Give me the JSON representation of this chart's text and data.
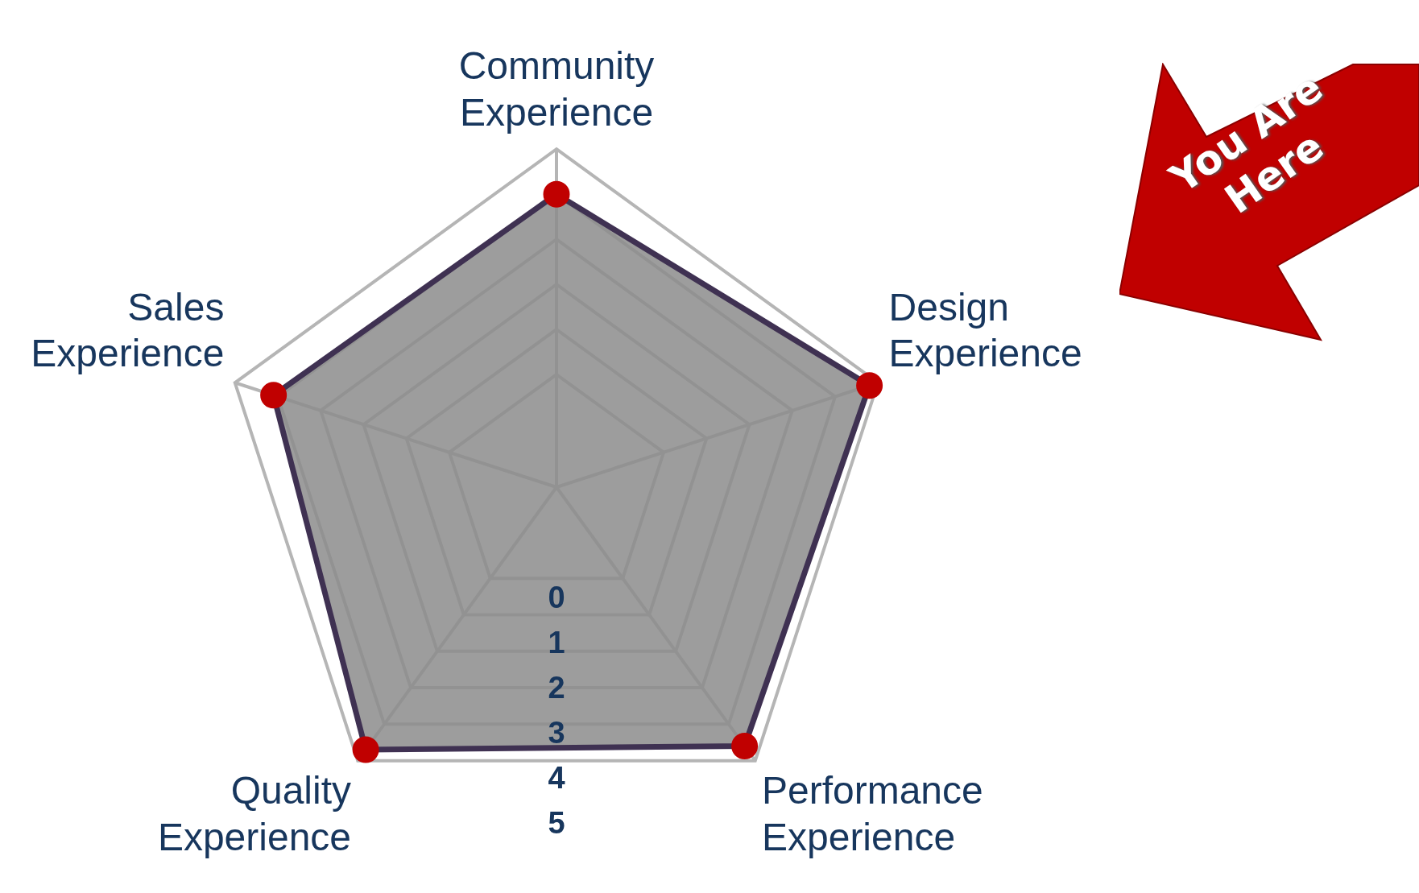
{
  "chart_data": {
    "type": "radar",
    "categories": [
      "Community Experience",
      "Design Experience",
      "Performance Experience",
      "Quality Experience",
      "Sales Experience"
    ],
    "series": [
      {
        "color": "#3f3152",
        "values": [
          4,
          4.8,
          4.6,
          4.7,
          4.1
        ]
      }
    ],
    "ylim": [
      -2.5,
      5
    ],
    "yticks": [
      0,
      1,
      2,
      3,
      4,
      5
    ],
    "marker": "circle",
    "legend": false,
    "grid": true,
    "annotations": [
      "You Are Here"
    ]
  }
}
